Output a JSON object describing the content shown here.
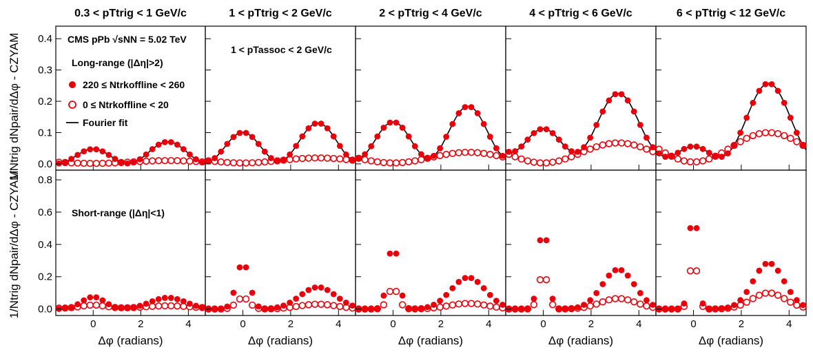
{
  "chart_data": {
    "type": "scatter",
    "experiment_label": "CMS pPb",
    "energy_label": "√sNN = 5.02 TeV",
    "assoc_label": "1 < pTassoc < 2 GeV/c",
    "rows": [
      "Long-range (|Δη|>2)",
      "Short-range (|Δη|<1)"
    ],
    "columns": [
      "0.3 < pTtrig < 1 GeV/c",
      "1 < pTtrig < 2 GeV/c",
      "2 < pTtrig < 4 GeV/c",
      "4 < pTtrig < 6 GeV/c",
      "6 < pTtrig < 12 GeV/c"
    ],
    "xlabel": "Δφ (radians)",
    "ylabel": "1/Ntrig dNpair/dΔφ - CZYAM",
    "xlim": [
      -1.5708,
      4.7124
    ],
    "xticks": [
      0,
      2,
      4
    ],
    "ylim_top": [
      -0.02,
      0.44
    ],
    "yticks_top": [
      "0.0",
      "0.1",
      "0.2",
      "0.3",
      "0.4"
    ],
    "ylim_bottom": [
      -0.04,
      0.86
    ],
    "yticks_bottom": [
      "0.0",
      "0.2",
      "0.4",
      "0.6",
      "0.8"
    ],
    "legend": {
      "high_mult": "220 ≤ Ntrkoffline < 260",
      "low_mult": "0 ≤ Ntrkoffline < 20",
      "fit": "Fourier fit"
    },
    "series_colors": {
      "high": "#e8000b",
      "low": "#e8000b",
      "fit": "#000000"
    },
    "long_range_fourier_params": {
      "high": [
        {
          "a1": -0.0115,
          "a2": 0.0285,
          "c": 0.0305
        },
        {
          "a1": -0.015,
          "a2": 0.0535,
          "c": 0.062
        },
        {
          "a1": -0.025,
          "a2": 0.0695,
          "c": 0.0895
        },
        {
          "a1": -0.0565,
          "a2": 0.0625,
          "c": 0.1063
        },
        {
          "a1": -0.1005,
          "a2": 0.056,
          "c": 0.1008
        }
      ],
      "low": [
        {
          "a1": -0.0045,
          "a2": 0.0,
          "c": 0.006
        },
        {
          "a1": -0.008,
          "a2": 0.0,
          "c": 0.011
        },
        {
          "a1": -0.017,
          "a2": 0.0,
          "c": 0.02
        },
        {
          "a1": -0.032,
          "a2": 0.0,
          "c": 0.035
        },
        {
          "a1": -0.047,
          "a2": 0.0,
          "c": 0.053
        }
      ]
    },
    "short_range_params": {
      "high": [
        {
          "away": 0.07,
          "away_width": 0.75,
          "peak": 0.075,
          "peak_width": 0.48,
          "base": 0.0
        },
        {
          "away": 0.135,
          "away_width": 0.75,
          "peak": 0.29,
          "peak_width": 0.27,
          "base": 0.0
        },
        {
          "away": 0.195,
          "away_width": 0.72,
          "peak": 0.41,
          "peak_width": 0.22,
          "base": 0.0
        },
        {
          "away": 0.245,
          "away_width": 0.68,
          "peak": 0.54,
          "peak_width": 0.19,
          "base": 0.0
        },
        {
          "away": 0.285,
          "away_width": 0.65,
          "peak": 0.7,
          "peak_width": 0.16,
          "base": 0.0
        }
      ],
      "low": [
        {
          "away": 0.015,
          "away_width": 0.9,
          "peak": 0.02,
          "peak_width": 0.5,
          "base": 0.005
        },
        {
          "away": 0.03,
          "away_width": 0.8,
          "peak": 0.07,
          "peak_width": 0.27,
          "base": 0.0
        },
        {
          "away": 0.035,
          "away_width": 0.8,
          "peak": 0.13,
          "peak_width": 0.22,
          "base": 0.0
        },
        {
          "away": 0.065,
          "away_width": 0.75,
          "peak": 0.23,
          "peak_width": 0.19,
          "base": 0.0
        },
        {
          "away": 0.1,
          "away_width": 0.7,
          "peak": 0.33,
          "peak_width": 0.16,
          "base": 0.0
        }
      ]
    },
    "n_points_per_panel": 24
  }
}
